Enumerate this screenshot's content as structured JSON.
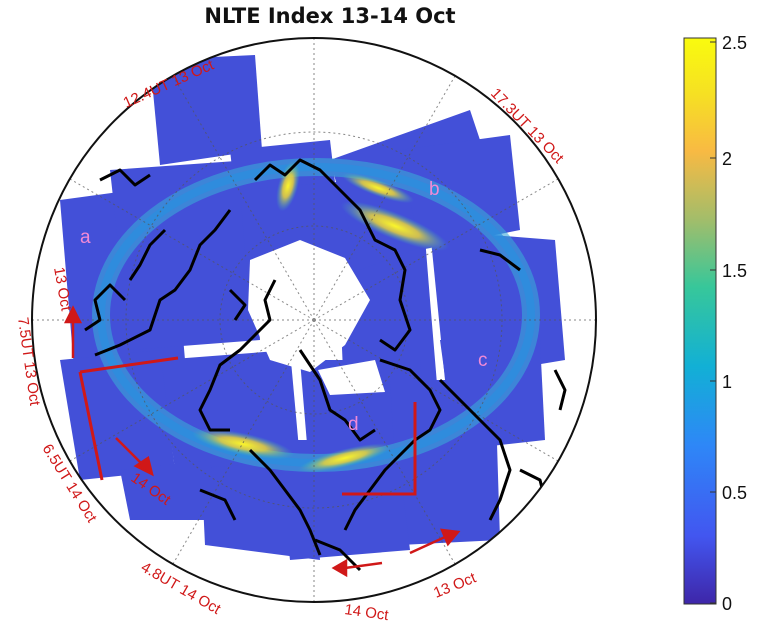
{
  "title": "NLTE Index 13-14 Oct",
  "colorbar": {
    "ticks": [
      "0",
      "0.5",
      "1",
      "1.5",
      "2",
      "2.5"
    ],
    "colors": [
      "#3e26a8",
      "#4256f0",
      "#2e87f7",
      "#12b0d5",
      "#37c79a",
      "#a3bd6a",
      "#f8ba43",
      "#f6e023",
      "#f9fb0e"
    ]
  },
  "colors": {
    "background_fill": "#4350d8",
    "annotation": "#d01818",
    "region_label": "#f08ad6",
    "high_index": "#f4ea2a",
    "coastline": "#000000"
  },
  "pass_labels": [
    "12.4UT 13 Oct",
    "17.3UT 13 Oct",
    "7.5UT 13 Oct",
    "6.5UT 14 Oct",
    "4.8UT 14 Oct"
  ],
  "direction_labels": [
    "13 Oct",
    "14 Oct",
    "14 Oct",
    "13 Oct"
  ],
  "region_labels": [
    "a",
    "b",
    "c",
    "d"
  ]
}
